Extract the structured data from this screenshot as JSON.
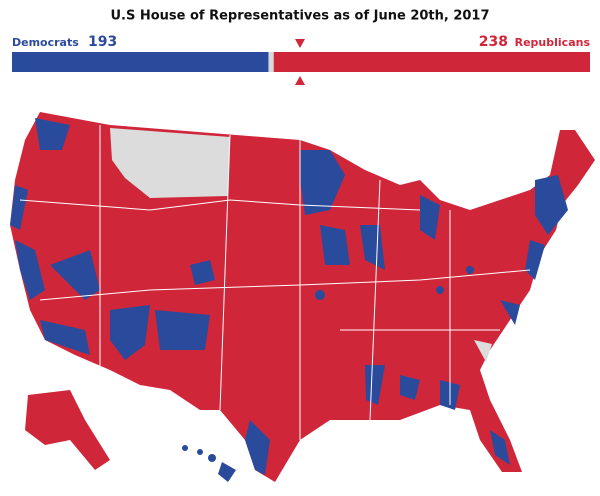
{
  "chart_data": {
    "type": "bar",
    "title": "U.S House of Representatives as of June 20th, 2017",
    "series": [
      {
        "name": "Democrats",
        "color": "#2a4a9c",
        "values": [
          193
        ]
      },
      {
        "name": "Republicans",
        "color": "#d0263a",
        "values": [
          238
        ]
      }
    ],
    "xlim": [
      0,
      435
    ]
  }
}
